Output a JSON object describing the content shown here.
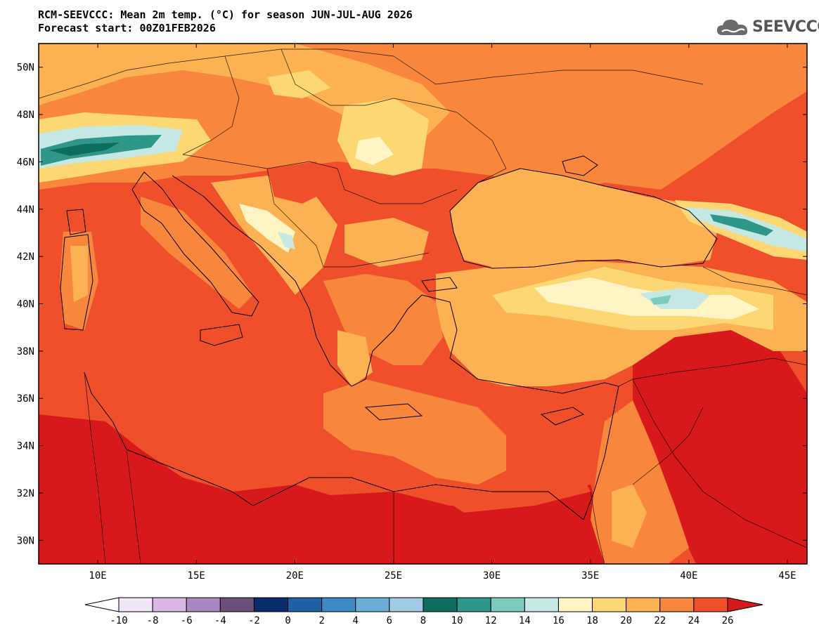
{
  "title": {
    "line1": "RCM-SEEVCCC: Mean 2m temp. (°C) for season JUN-JUL-AUG 2026",
    "line2": "Forecast start: 00Z01FEB2026"
  },
  "logo": {
    "text": "SEEVCCC",
    "icon": "cloud-icon"
  },
  "map": {
    "projection": "lat-lon",
    "lon_range": [
      7,
      46
    ],
    "lat_range": [
      29,
      51
    ],
    "lat_labels": [
      "50N",
      "48N",
      "46N",
      "44N",
      "42N",
      "40N",
      "38N",
      "36N",
      "34N",
      "32N",
      "30N"
    ],
    "lat_values": [
      50,
      48,
      46,
      44,
      42,
      40,
      38,
      36,
      34,
      32,
      30
    ],
    "lon_labels": [
      "10E",
      "15E",
      "20E",
      "25E",
      "30E",
      "35E",
      "40E",
      "45E"
    ],
    "lon_values": [
      10,
      15,
      20,
      25,
      30,
      35,
      40,
      45
    ],
    "region_values_c": {
      "sea_background": 24,
      "north_africa": 26,
      "syria_iraq": 26,
      "east_med_sea": 22,
      "black_sea": 20,
      "anatolian_plateau": 18,
      "alps": 12,
      "caucasus": 12
    }
  },
  "colorbar": {
    "min_label": "-10",
    "labels": [
      "-10",
      "-8",
      "-6",
      "-4",
      "-2",
      "0",
      "2",
      "4",
      "6",
      "8",
      "10",
      "12",
      "14",
      "16",
      "18",
      "20",
      "22",
      "24",
      "26"
    ],
    "levels": [
      -10,
      -8,
      -6,
      -4,
      -2,
      0,
      2,
      4,
      6,
      8,
      10,
      12,
      14,
      16,
      18,
      20,
      22,
      24,
      26
    ],
    "colors": [
      "#f0e6f7",
      "#d9b8e6",
      "#a987c3",
      "#6a4f78",
      "#0b2c6a",
      "#1f5fa6",
      "#3d89c3",
      "#6aaed6",
      "#a2cae3",
      "#0d6e5d",
      "#2f978a",
      "#7dcbbf",
      "#c5e8e4",
      "#fff5c4",
      "#fdd774",
      "#fcb253",
      "#f8873d",
      "#ef4f2b"
    ],
    "under_color": "#ffffff",
    "over_color": "#d7191c"
  }
}
